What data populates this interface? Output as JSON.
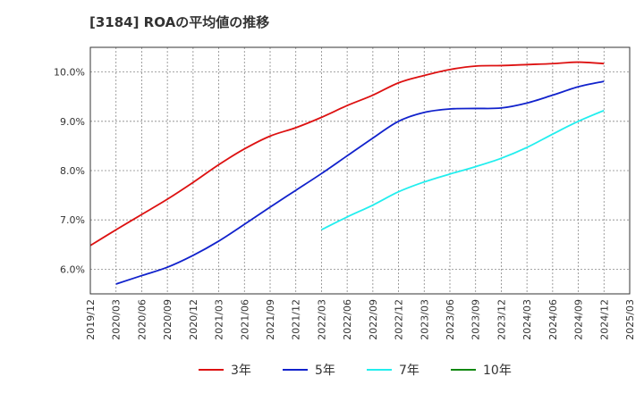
{
  "chart_data": {
    "type": "line",
    "title": "[3184]  ROAの平均値の推移",
    "xlabel": "",
    "ylabel": "",
    "x": [
      "2019/12",
      "2020/03",
      "2020/06",
      "2020/09",
      "2020/12",
      "2021/03",
      "2021/06",
      "2021/09",
      "2021/12",
      "2022/03",
      "2022/06",
      "2022/09",
      "2022/12",
      "2023/03",
      "2023/06",
      "2023/09",
      "2023/12",
      "2024/03",
      "2024/06",
      "2024/09",
      "2024/12",
      "2025/03"
    ],
    "yticks": [
      "6.0%",
      "7.0%",
      "8.0%",
      "9.0%",
      "10.0%"
    ],
    "ylim": [
      5.5,
      10.5
    ],
    "grid": true,
    "legend_position": "bottom",
    "series": [
      {
        "name": "3年",
        "color": "#dd1111",
        "values": [
          6.48,
          6.8,
          7.11,
          7.42,
          7.76,
          8.12,
          8.44,
          8.7,
          8.87,
          9.08,
          9.32,
          9.53,
          9.78,
          9.93,
          10.05,
          10.12,
          10.13,
          10.15,
          10.17,
          10.2,
          10.17,
          null
        ]
      },
      {
        "name": "5年",
        "color": "#1122cc",
        "values": [
          null,
          5.7,
          5.87,
          6.04,
          6.28,
          6.57,
          6.91,
          7.26,
          7.6,
          7.94,
          8.3,
          8.66,
          9.0,
          9.18,
          9.25,
          9.26,
          9.27,
          9.37,
          9.53,
          9.7,
          9.81,
          null
        ]
      },
      {
        "name": "7年",
        "color": "#22eeee",
        "values": [
          null,
          null,
          null,
          null,
          null,
          null,
          null,
          null,
          null,
          6.8,
          7.06,
          7.3,
          7.57,
          7.77,
          7.93,
          8.08,
          8.25,
          8.47,
          8.74,
          9.0,
          9.22,
          null
        ]
      },
      {
        "name": "10年",
        "color": "#118811",
        "values": [
          null,
          null,
          null,
          null,
          null,
          null,
          null,
          null,
          null,
          null,
          null,
          null,
          null,
          null,
          null,
          null,
          null,
          null,
          null,
          null,
          null,
          null
        ]
      }
    ]
  }
}
